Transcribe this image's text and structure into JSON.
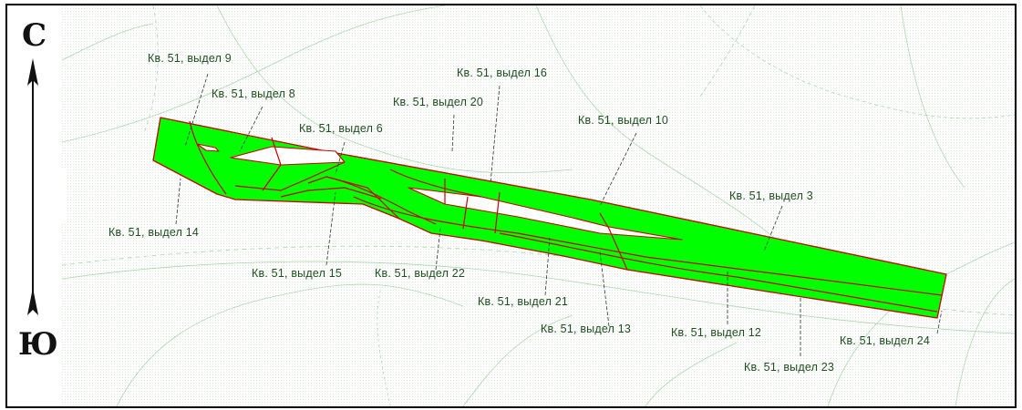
{
  "compass": {
    "north": "С",
    "south": "Ю"
  },
  "colors": {
    "parcel_fill": "#00ff00",
    "parcel_stroke": "#cc0000",
    "background_lines": "#7fbf7f",
    "label_text": "#1e4f1e"
  },
  "labels": [
    "Кв. 51, выдел 9",
    "Кв. 51, выдел 8",
    "Кв. 51, выдел 16",
    "Кв. 51, выдел 20",
    "Кв. 51, выдел 6",
    "Кв. 51, выдел 10",
    "Кв. 51, выдел 3",
    "Кв. 51, выдел 14",
    "Кв. 51, выдел 15",
    "Кв. 51, выдел 22",
    "Кв. 51, выдел 21",
    "Кв. 51, выдел 13",
    "Кв. 51, выдел 12",
    "Кв. 51, выдел 24",
    "Кв. 51, выдел 23"
  ]
}
